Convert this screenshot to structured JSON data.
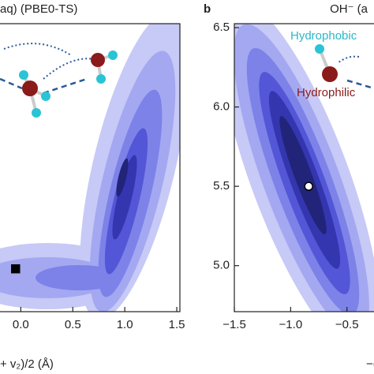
{
  "chart_data": [
    {
      "type": "scatter",
      "title": "aq) (PBE0-TS)",
      "x_label": "+ v₂)/2 (Å)",
      "x": [
        -0.05
      ],
      "values": [
        4.98
      ],
      "marker": "square",
      "color": "#000000",
      "xlim": [
        -0.2,
        1.53
      ],
      "ylim": [
        4.71,
        6.525
      ],
      "xticks": [
        {
          "value": 0,
          "label": "0.0"
        },
        0.5,
        {
          "value": 1,
          "label": "1.0"
        },
        1.5
      ]
    },
    {
      "type": "scatter",
      "panel_label": "b",
      "title": "OH⁻ (a",
      "x_label": "−(v",
      "x": [
        -0.84
      ],
      "values": [
        5.5
      ],
      "marker": "circle",
      "color": "#ffffff",
      "annotations": [
        "Hydrophobic",
        "Hydrophilic"
      ],
      "xlim": [
        -1.5,
        -0.26
      ],
      "ylim": [
        4.71,
        6.525
      ],
      "xticks": [
        {
          "value": -1.5,
          "label": "−1.5"
        },
        {
          "value": -1,
          "label": "−1.0"
        },
        {
          "value": -0.5,
          "label": "−0.5"
        }
      ],
      "yticks": [
        6.5,
        {
          "value": 6,
          "label": "6.0"
        },
        5.5,
        {
          "value": 5,
          "label": "5.0"
        }
      ]
    }
  ]
}
